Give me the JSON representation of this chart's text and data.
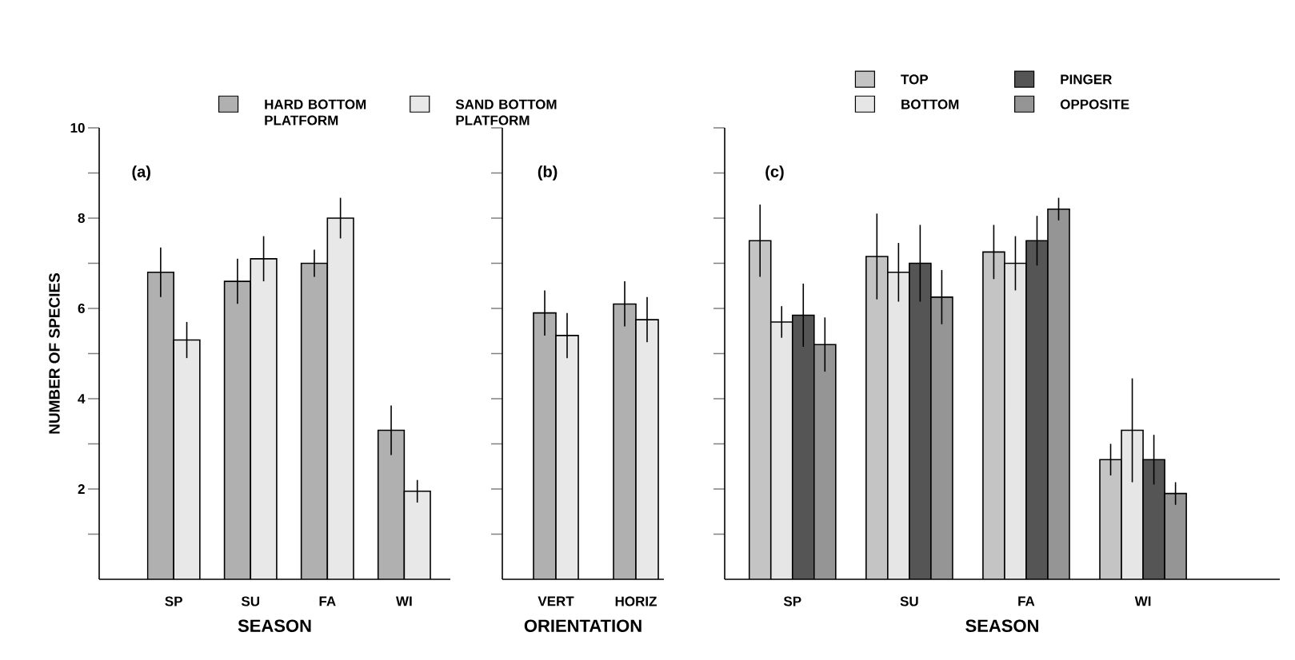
{
  "chart_data": [
    {
      "type": "bar",
      "categories": [
        "SP",
        "SU",
        "FA",
        "WI"
      ],
      "xlabel": "SEASON",
      "ylabel": "NUMBER OF SPECIES",
      "ylim": [
        0,
        10
      ],
      "yticks": [
        {
          "value": 1,
          "label": null
        },
        2,
        {
          "value": 3,
          "label": null
        },
        4,
        {
          "value": 5,
          "label": null
        },
        6,
        {
          "value": 7,
          "label": null
        },
        8,
        {
          "value": 9,
          "label": null
        },
        10
      ],
      "legend": "top",
      "annotations": [
        "(a)"
      ],
      "series": [
        {
          "name": "HARD BOTTOM PLATFORM",
          "color": "#b0b0b0",
          "values": [
            6.8,
            6.6,
            7.0,
            3.3
          ],
          "errors": [
            0.55,
            0.5,
            0.3,
            0.55
          ]
        },
        {
          "name": "SAND BOTTOM PLATFORM",
          "color": "#e8e8e8",
          "values": [
            5.3,
            7.1,
            8.0,
            1.95
          ],
          "errors": [
            0.4,
            0.5,
            0.45,
            0.25
          ]
        }
      ]
    },
    {
      "type": "bar",
      "categories": [
        "VERT",
        "HORIZ"
      ],
      "xlabel": "ORIENTATION",
      "ylim": [
        0,
        10
      ],
      "yticks": [
        {
          "value": 1,
          "label": null
        },
        {
          "value": 2,
          "label": null
        },
        {
          "value": 3,
          "label": null
        },
        {
          "value": 4,
          "label": null
        },
        {
          "value": 5,
          "label": null
        },
        {
          "value": 6,
          "label": null
        },
        {
          "value": 7,
          "label": null
        },
        {
          "value": 8,
          "label": null
        },
        {
          "value": 9,
          "label": null
        },
        {
          "value": 10,
          "label": null
        }
      ],
      "tick_labels": "x",
      "annotations": [
        "(b)"
      ],
      "series": [
        {
          "color": "#b0b0b0",
          "values": [
            5.9,
            6.1
          ],
          "errors": [
            0.5,
            0.5
          ]
        },
        {
          "color": "#e8e8e8",
          "values": [
            5.4,
            5.75
          ],
          "errors": [
            0.5,
            0.5
          ]
        }
      ]
    },
    {
      "type": "bar",
      "categories": [
        "SP",
        "SU",
        "FA",
        "WI"
      ],
      "xlabel": "SEASON",
      "ylim": [
        0,
        10
      ],
      "yticks": [
        {
          "value": 1,
          "label": null
        },
        {
          "value": 2,
          "label": null
        },
        {
          "value": 3,
          "label": null
        },
        {
          "value": 4,
          "label": null
        },
        {
          "value": 5,
          "label": null
        },
        {
          "value": 6,
          "label": null
        },
        {
          "value": 7,
          "label": null
        },
        {
          "value": 8,
          "label": null
        },
        {
          "value": 9,
          "label": null
        },
        {
          "value": 10,
          "label": null
        }
      ],
      "tick_labels": "x",
      "legend": "top",
      "annotations": [
        "(c)"
      ],
      "series": [
        {
          "name": "TOP",
          "color": "#c4c4c4",
          "values": [
            7.5,
            7.15,
            7.25,
            2.65
          ],
          "errors": [
            0.8,
            0.95,
            0.6,
            0.35
          ]
        },
        {
          "name": "BOTTOM",
          "color": "#e6e6e6",
          "values": [
            5.7,
            6.8,
            7.0,
            3.3
          ],
          "errors": [
            0.35,
            0.65,
            0.6,
            1.15
          ]
        },
        {
          "name": "PINGER",
          "color": "#555555",
          "values": [
            5.85,
            7.0,
            7.5,
            2.65
          ],
          "errors": [
            0.7,
            0.85,
            0.55,
            0.55
          ]
        },
        {
          "name": "OPPOSITE",
          "color": "#959595",
          "values": [
            5.2,
            6.25,
            8.2,
            1.9
          ],
          "errors": [
            0.6,
            0.6,
            0.25,
            0.25
          ]
        }
      ]
    }
  ]
}
